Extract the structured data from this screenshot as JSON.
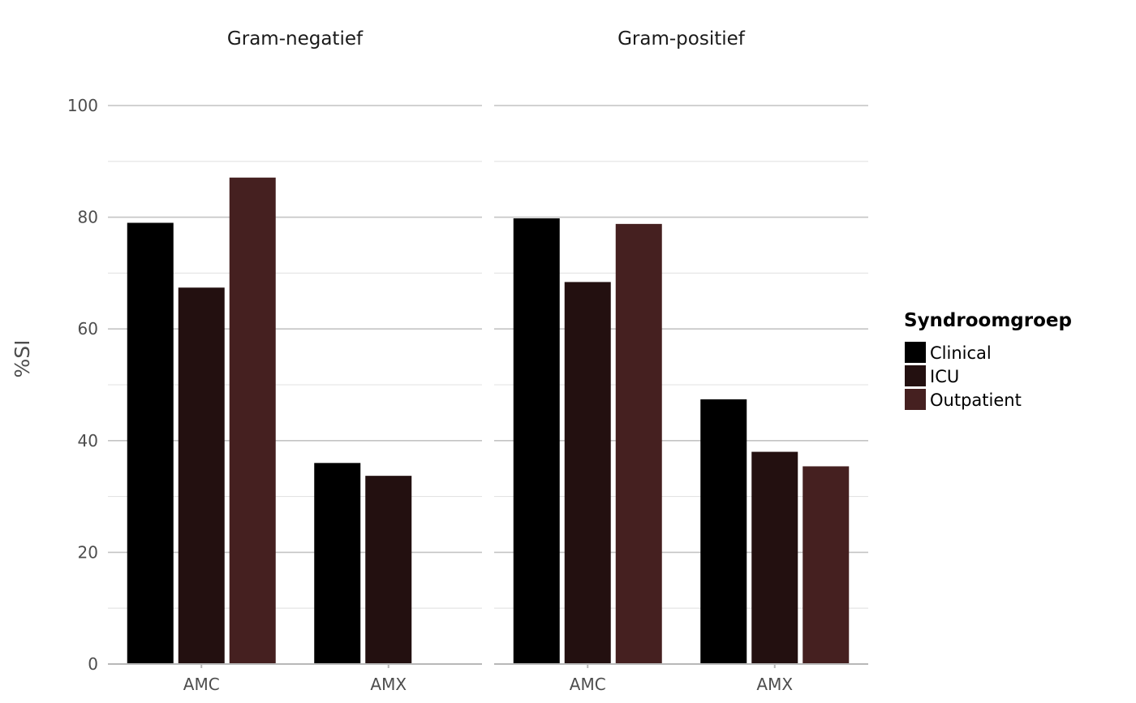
{
  "chart_data": {
    "type": "bar",
    "ylabel": "%SI",
    "xlabel": "",
    "ylim": [
      0,
      100
    ],
    "yticks": [
      0,
      20,
      40,
      60,
      80,
      100
    ],
    "grid": true,
    "legend": {
      "title": "Syndroomgroep",
      "position": "right",
      "entries": [
        "Clinical",
        "ICU",
        "Outpatient"
      ]
    },
    "colors": {
      "Clinical": "#000000",
      "ICU": "#231010",
      "Outpatient": "#452020"
    },
    "categories": [
      "AMC",
      "AMX"
    ],
    "facets": [
      {
        "label": "Gram-negatief",
        "series": [
          {
            "name": "Clinical",
            "values": [
              79,
              36
            ]
          },
          {
            "name": "ICU",
            "values": [
              67.4,
              33.7
            ]
          },
          {
            "name": "Outpatient",
            "values": [
              87.1,
              null
            ]
          }
        ]
      },
      {
        "label": "Gram-positief",
        "series": [
          {
            "name": "Clinical",
            "values": [
              79.8,
              47.4
            ]
          },
          {
            "name": "ICU",
            "values": [
              68.4,
              38
            ]
          },
          {
            "name": "Outpatient",
            "values": [
              78.8,
              35.4
            ]
          }
        ]
      }
    ]
  }
}
